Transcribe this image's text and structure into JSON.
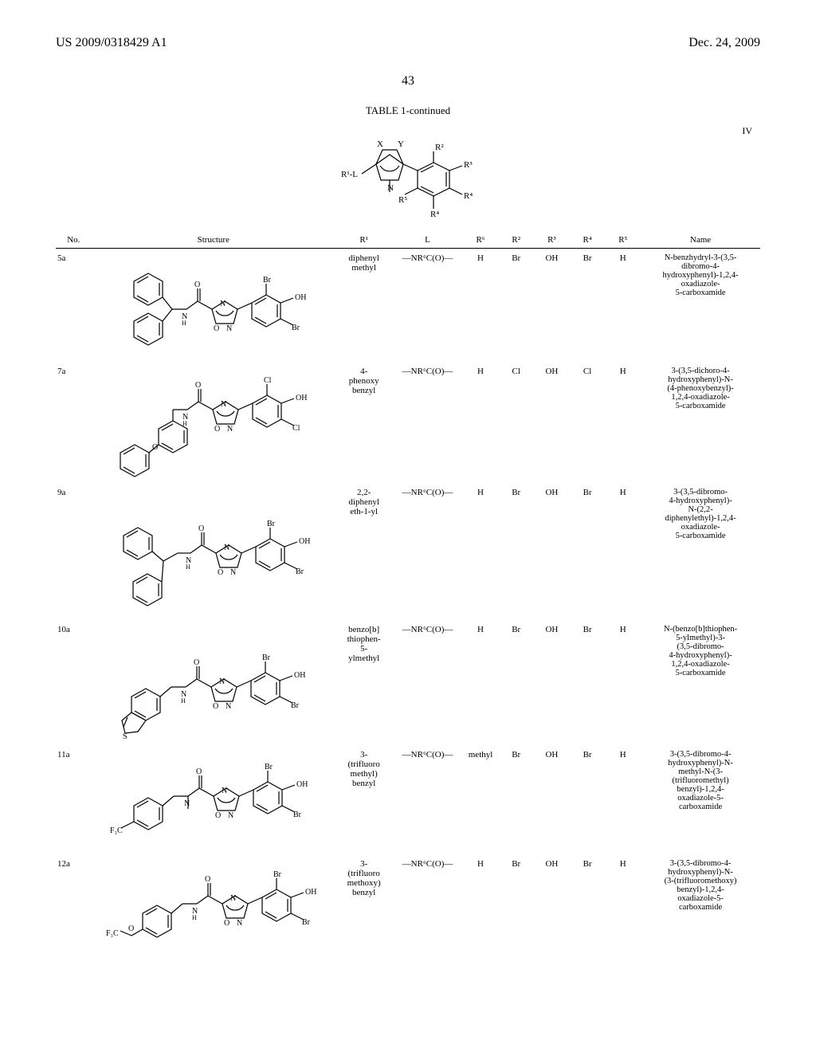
{
  "header": {
    "left": "US 2009/0318429 A1",
    "right": "Dec. 24, 2009"
  },
  "page_number": "43",
  "table_title": "TABLE 1-continued",
  "formula_label": "IV",
  "columns": {
    "no": "No.",
    "structure": "Structure",
    "r1": "R¹",
    "l": "L",
    "r6": "R⁶",
    "r2": "R²",
    "r3": "R³",
    "r4": "R⁴",
    "r5": "R⁵",
    "name": "Name"
  },
  "rows": [
    {
      "no": "5a",
      "r1": "diphenyl\nmethyl",
      "l": "—NR⁶C(O)—",
      "r6": "H",
      "r2": "Br",
      "r3": "OH",
      "r4": "Br",
      "r5": "H",
      "name": "N-benzhydryl-3-(3,5-\ndibromo-4-\nhydroxyphenyl)-1,2,4-\noxadiazole-\n5-carboxamide"
    },
    {
      "no": "7a",
      "r1": "4-\nphenoxy\nbenzyl",
      "l": "—NR⁶C(O)—",
      "r6": "H",
      "r2": "Cl",
      "r3": "OH",
      "r4": "Cl",
      "r5": "H",
      "name": "3-(3,5-dichoro-4-\nhydroxyphenyl)-N-\n(4-phenoxybenzyl)-\n1,2,4-oxadiazole-\n5-carboxamide"
    },
    {
      "no": "9a",
      "r1": "2,2-\ndiphenyl\neth-1-yl",
      "l": "—NR⁶C(O)—",
      "r6": "H",
      "r2": "Br",
      "r3": "OH",
      "r4": "Br",
      "r5": "H",
      "name": "3-(3,5-dibromo-\n4-hydroxyphenyl)-\nN-(2,2-\ndiphenylethyl)-1,2,4-\noxadiazole-\n5-carboxamide"
    },
    {
      "no": "10a",
      "r1": "benzo[b]\nthiophen-\n5-\nylmethyl",
      "l": "—NR⁶C(O)—",
      "r6": "H",
      "r2": "Br",
      "r3": "OH",
      "r4": "Br",
      "r5": "H",
      "name": "N-(benzo[b]thiophen-\n5-ylmethyl)-3-\n(3,5-dibromo-\n4-hydroxyphenyl)-\n1,2,4-oxadiazole-\n5-carboxamide"
    },
    {
      "no": "11a",
      "r1": "3-\n(trifluoro\nmethyl)\nbenzyl",
      "l": "—NR⁶C(O)—",
      "r6": "methyl",
      "r2": "Br",
      "r3": "OH",
      "r4": "Br",
      "r5": "H",
      "name": "3-(3,5-dibromo-4-\nhydroxyphenyl)-N-\nmethyl-N-(3-\n(trifluoromethyl)\nbenzyl)-1,2,4-\noxadiazole-5-\ncarboxamide"
    },
    {
      "no": "12a",
      "r1": "3-\n(trifluoro\nmethoxy)\nbenzyl",
      "l": "—NR⁶C(O)—",
      "r6": "H",
      "r2": "Br",
      "r3": "OH",
      "r4": "Br",
      "r5": "H",
      "name": "3-(3,5-dibromo-4-\nhydroxyphenyl)-N-\n(3-(trifluoromethoxy)\nbenzyl)-1,2,4-\noxadiazole-5-\ncarboxamide"
    }
  ],
  "core_structure": {
    "labels": {
      "r1l": "R¹-L",
      "x": "X",
      "y": "Y",
      "n": "N",
      "r2": "R²",
      "r3": "R³",
      "r4": "R⁴",
      "r5": "R⁵"
    }
  },
  "colors": {
    "line": "#000000",
    "bg": "#ffffff"
  },
  "line_width": 1.2,
  "font_sizes": {
    "header": 16,
    "pagenum": 16,
    "tabletitle": 13,
    "body": 11,
    "name": 10.5,
    "svg_label": 10
  }
}
